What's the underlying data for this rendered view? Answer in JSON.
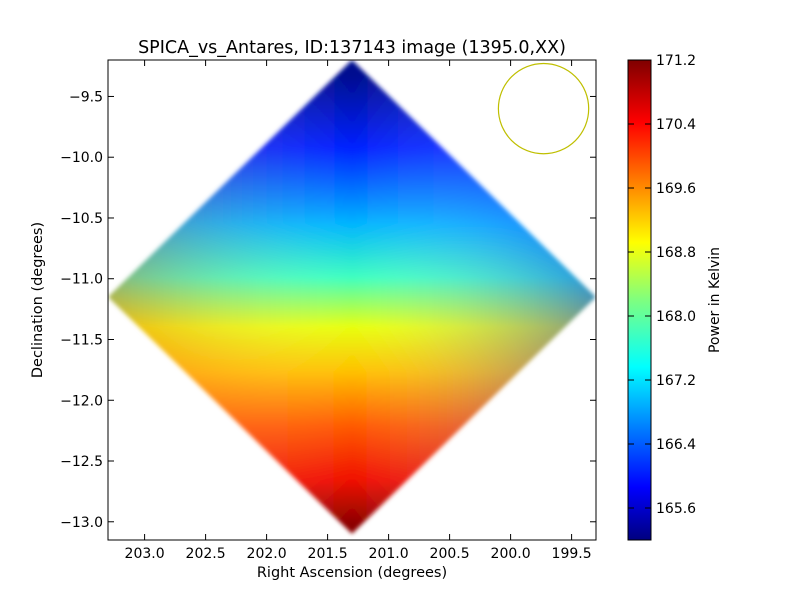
{
  "chart_data": {
    "type": "heatmap",
    "title": "SPICA_vs_Antares, ID:137143 image (1395.0,XX)",
    "xlabel": "Right Ascension (degrees)",
    "ylabel": "Declination (degrees)",
    "colorbar_label": "Power in Kelvin",
    "xlim": [
      203.3,
      199.3
    ],
    "ylim": [
      -13.15,
      -9.2
    ],
    "x_ticks": [
      203.0,
      202.5,
      202.0,
      201.5,
      201.0,
      200.5,
      200.0,
      199.5
    ],
    "x_tick_labels": [
      "203.0",
      "202.5",
      "202.0",
      "201.5",
      "201.0",
      "200.5",
      "200.0",
      "199.5"
    ],
    "y_ticks": [
      -9.5,
      -10.0,
      -10.5,
      -11.0,
      -11.5,
      -12.0,
      -12.5,
      -13.0
    ],
    "y_tick_labels": [
      "−9.5",
      "−10.0",
      "−10.5",
      "−11.0",
      "−11.5",
      "−12.0",
      "−12.5",
      "−13.0"
    ],
    "colorbar_range": [
      165.2,
      171.2
    ],
    "colorbar_ticks": [
      165.6,
      166.4,
      167.2,
      168.0,
      168.8,
      169.6,
      170.4,
      171.2
    ],
    "colorbar_tick_labels": [
      "165.6",
      "166.4",
      "167.2",
      "168.0",
      "168.8",
      "169.6",
      "170.4",
      "171.2"
    ],
    "colormap": "jet",
    "map_footprint": {
      "shape": "diamond",
      "vertices": [
        [
          201.3,
          -9.2
        ],
        [
          199.3,
          -11.15
        ],
        [
          201.3,
          -13.1
        ],
        [
          203.3,
          -11.15
        ]
      ]
    },
    "value_field": {
      "description_points": [
        {
          "ra": 201.3,
          "dec": -9.25,
          "value": 165.3
        },
        {
          "ra": 199.4,
          "dec": -11.1,
          "value": 166.0
        },
        {
          "ra": 201.3,
          "dec": -13.05,
          "value": 170.9
        },
        {
          "ra": 203.2,
          "dec": -11.2,
          "value": 169.8
        },
        {
          "ra": 201.3,
          "dec": -11.1,
          "value": 168.2
        }
      ]
    },
    "beam_circle": {
      "ra": 199.73,
      "dec": -9.6,
      "radius_deg": 0.37,
      "color": "#bfbf00"
    },
    "grid": false
  }
}
